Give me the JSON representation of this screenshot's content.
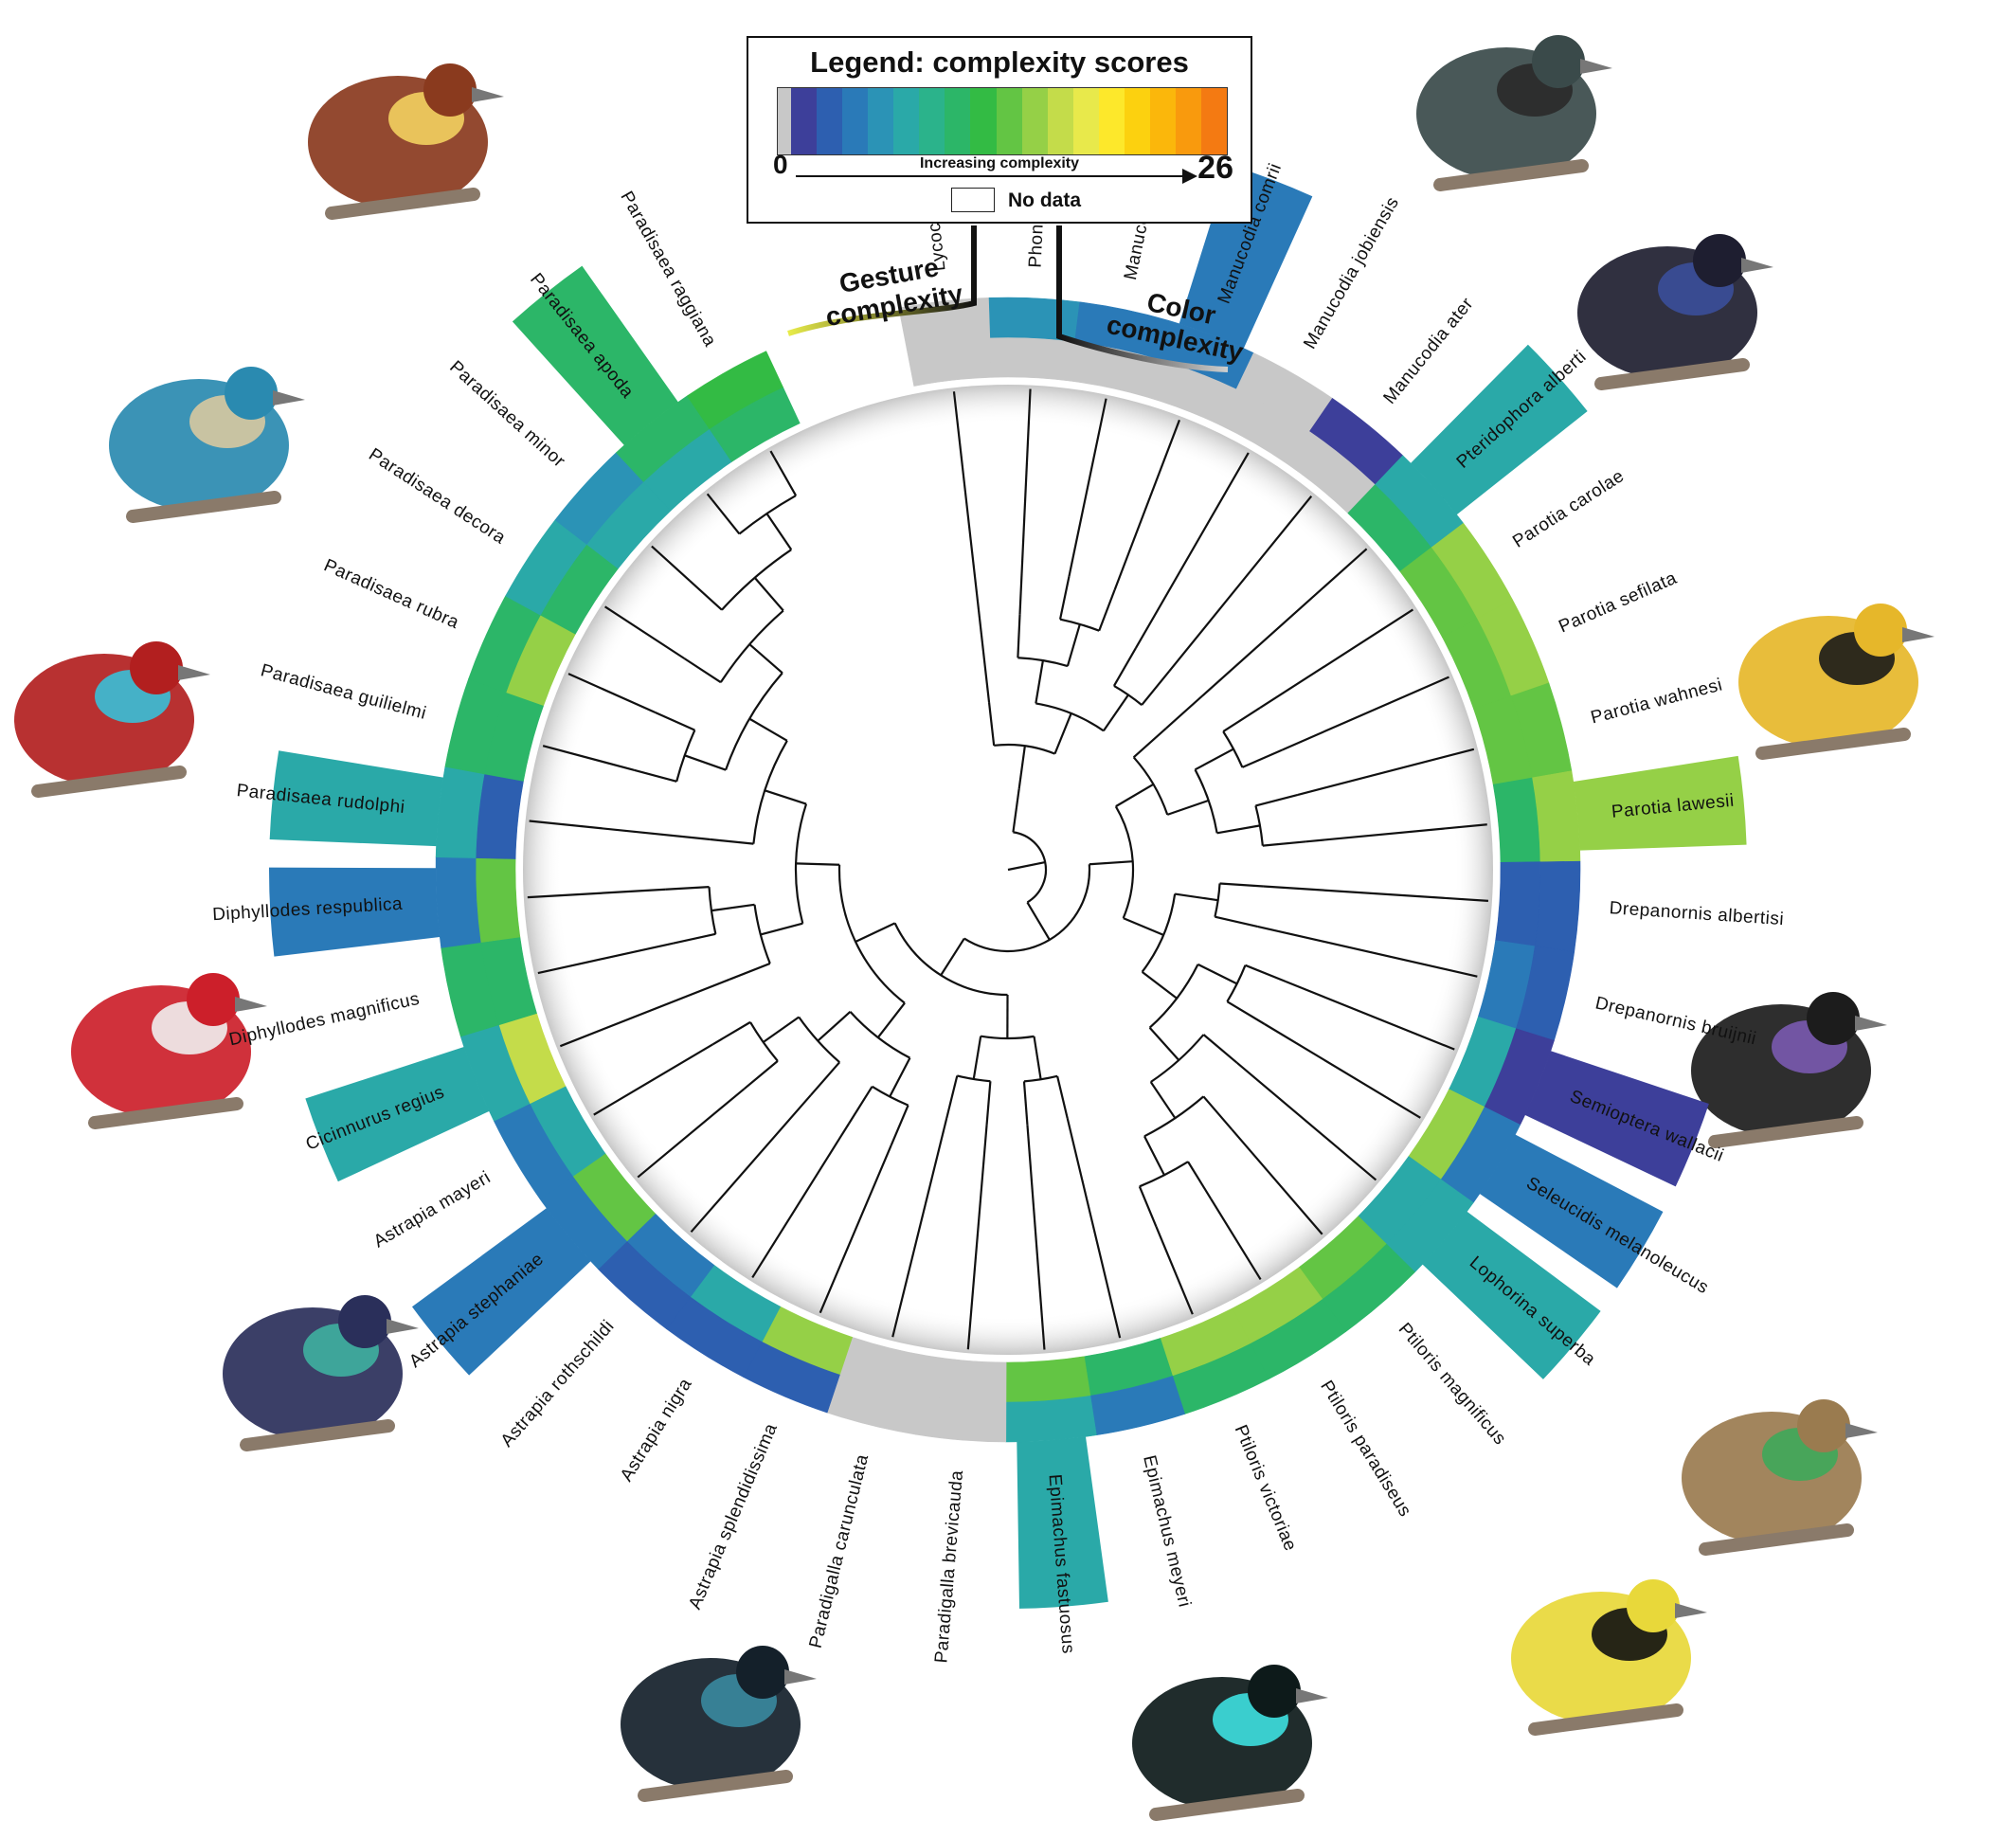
{
  "legend": {
    "title": "Legend: complexity scores",
    "min": "0",
    "max": "26",
    "axis_label": "Increasing complexity",
    "no_data_label": "No data"
  },
  "ring_labels": {
    "gesture": [
      "Gesture",
      "complexity"
    ],
    "color": [
      "Color",
      "complexity"
    ]
  },
  "colors": {
    "no_data": "#c8c8c8",
    "scale": [
      "#c8c8c8",
      "#3d3f9a",
      "#2d5fb0",
      "#2a7ab8",
      "#2b93b6",
      "#2aa9a8",
      "#2bb38b",
      "#2cb668",
      "#33bb44",
      "#63c544",
      "#95d047",
      "#c4dc4a",
      "#e8e94b",
      "#fde82b",
      "#fcd10f",
      "#fbb70b",
      "#f99a0d",
      "#f47a12"
    ],
    "branch": "#111111"
  },
  "species": [
    {
      "name": "Lycocorax pyrrhopterus",
      "gesture": 0,
      "color": 0,
      "highlight": false
    },
    {
      "name": "Phonygammus keraudrenii",
      "gesture": 0,
      "color": 6,
      "highlight": false
    },
    {
      "name": "Manucodia chalybatus",
      "gesture": 0,
      "color": 4,
      "highlight": false
    },
    {
      "name": "Manucodia comrii",
      "gesture": 0,
      "color": 5,
      "highlight": true
    },
    {
      "name": "Manucodia jobiensis",
      "gesture": 0,
      "color": 0,
      "highlight": false
    },
    {
      "name": "Manucodia ater",
      "gesture": 0,
      "color": 2,
      "highlight": false
    },
    {
      "name": "Pteridophora alberti",
      "gesture": 10,
      "color": 8,
      "highlight": true
    },
    {
      "name": "Parotia carolae",
      "gesture": 13,
      "color": 16,
      "highlight": false
    },
    {
      "name": "Parotia sefilata",
      "gesture": 13,
      "color": 15,
      "highlight": false
    },
    {
      "name": "Parotia wahnesi",
      "gesture": 13,
      "color": 14,
      "highlight": false
    },
    {
      "name": "Parotia lawesii",
      "gesture": 11,
      "color": 16,
      "highlight": true
    },
    {
      "name": "Drepanornis albertisi",
      "gesture": 3,
      "color": 3,
      "highlight": false
    },
    {
      "name": "Drepanornis bruijnii",
      "gesture": 4,
      "color": 3,
      "highlight": false
    },
    {
      "name": "Semioptera wallacii",
      "gesture": 8,
      "color": 2,
      "highlight": true
    },
    {
      "name": "Seleucidis melanoleucus",
      "gesture": 15,
      "color": 4,
      "highlight": true
    },
    {
      "name": "Lophorina superba",
      "gesture": 8,
      "color": 8,
      "highlight": true
    },
    {
      "name": "Ptiloris magnificus",
      "gesture": 14,
      "color": 10,
      "highlight": false
    },
    {
      "name": "Ptiloris paradiseus",
      "gesture": 16,
      "color": 10,
      "highlight": false
    },
    {
      "name": "Ptiloris victoriae",
      "gesture": 15,
      "color": 10,
      "highlight": false
    },
    {
      "name": "Epimachus meyeri",
      "gesture": 11,
      "color": 4,
      "highlight": false
    },
    {
      "name": "Epimachus fastuosus",
      "gesture": 13,
      "color": 8,
      "highlight": true
    },
    {
      "name": "Paradigalla brevicauda",
      "gesture": 0,
      "color": 0,
      "highlight": false
    },
    {
      "name": "Paradigalla carunculata",
      "gesture": 0,
      "color": 0,
      "highlight": false
    },
    {
      "name": "Astrapia splendidissima",
      "gesture": 15,
      "color": 3,
      "highlight": false
    },
    {
      "name": "Astrapia nigra",
      "gesture": 7,
      "color": 3,
      "highlight": false
    },
    {
      "name": "Astrapia rothschildi",
      "gesture": 5,
      "color": 3,
      "highlight": false
    },
    {
      "name": "Astrapia stephaniae",
      "gesture": 13,
      "color": 4,
      "highlight": true
    },
    {
      "name": "Astrapia mayeri",
      "gesture": 7,
      "color": 5,
      "highlight": false
    },
    {
      "name": "Cicinnurus regius",
      "gesture": 17,
      "color": 8,
      "highlight": true
    },
    {
      "name": "Diphyllodes magnificus",
      "gesture": 11,
      "color": 10,
      "highlight": false
    },
    {
      "name": "Diphyllodes respublica",
      "gesture": 14,
      "color": 5,
      "highlight": true
    },
    {
      "name": "Paradisaea rudolphi",
      "gesture": 3,
      "color": 7,
      "highlight": true
    },
    {
      "name": "Paradisaea guilielmi",
      "gesture": 11,
      "color": 10,
      "highlight": false
    },
    {
      "name": "Paradisaea rubra",
      "gesture": 15,
      "color": 11,
      "highlight": false
    },
    {
      "name": "Paradisaea decora",
      "gesture": 10,
      "color": 8,
      "highlight": false
    },
    {
      "name": "Paradisaea minor",
      "gesture": 8,
      "color": 6,
      "highlight": false
    },
    {
      "name": "Paradisaea apoda",
      "gesture": 8,
      "color": 10,
      "highlight": true
    },
    {
      "name": "Paradisaea raggiana",
      "gesture": 11,
      "color": 12,
      "highlight": false
    }
  ],
  "illustrations": [
    "crow-like-bird",
    "glossy-manucode",
    "king-of-saxony",
    "parotia-display",
    "twelve-wired",
    "standardwing",
    "superb-bird",
    "riflebird-fan",
    "sicklebill",
    "astrapia-long-tail",
    "king-bird",
    "wilsons-bird",
    "blue-bird",
    "greater-bird"
  ]
}
